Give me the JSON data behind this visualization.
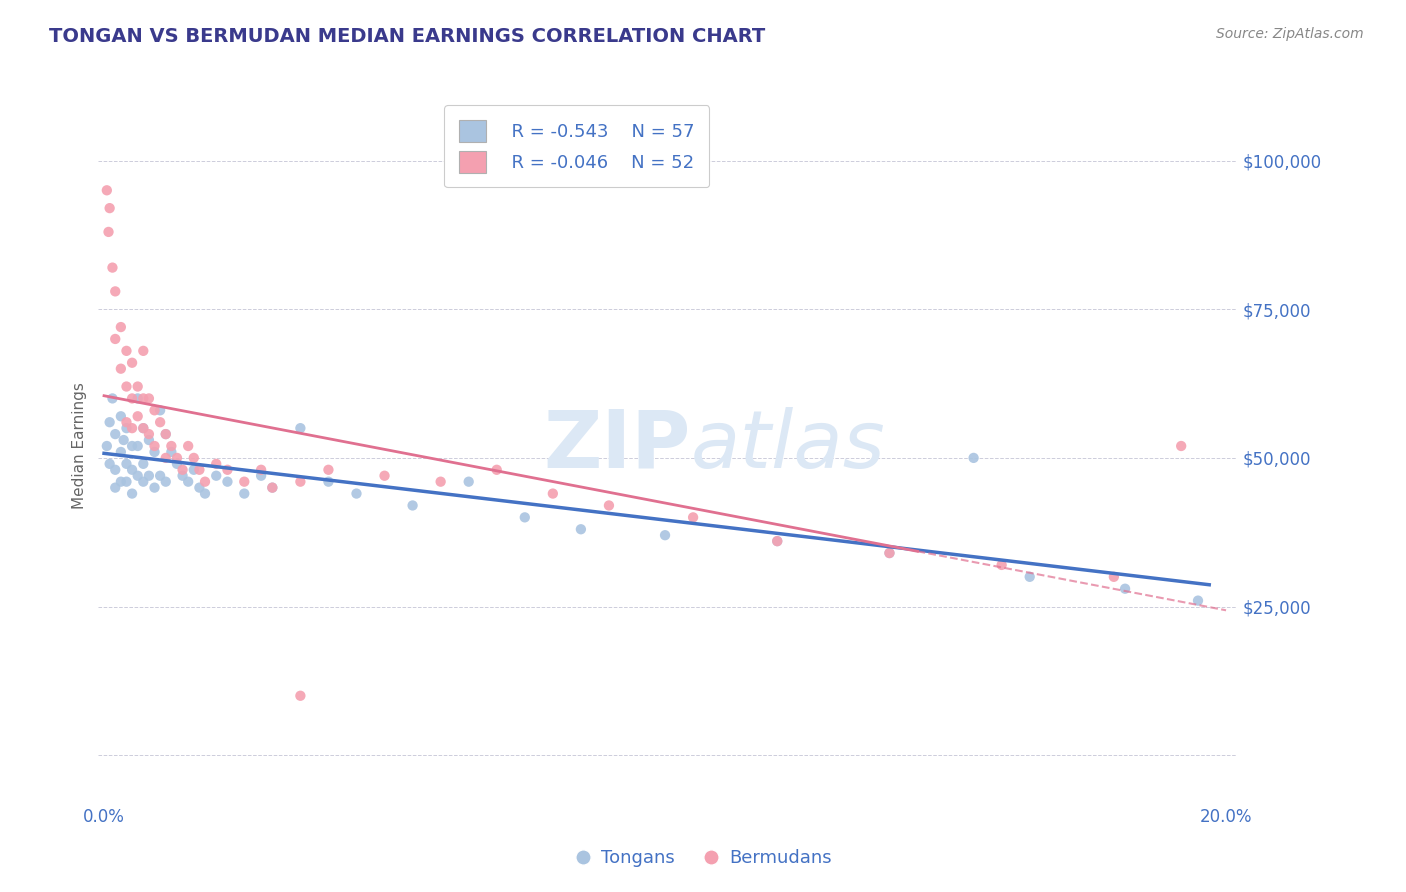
{
  "title": "TONGAN VS BERMUDAN MEDIAN EARNINGS CORRELATION CHART",
  "source": "Source: ZipAtlas.com",
  "ylabel_label": "Median Earnings",
  "y_ticks": [
    0,
    25000,
    50000,
    75000,
    100000
  ],
  "xlim": [
    -0.001,
    0.202
  ],
  "ylim": [
    -8000,
    112000
  ],
  "title_color": "#3a3a8c",
  "axis_color": "#4472c4",
  "legend_r1": "R = -0.543",
  "legend_n1": "N = 57",
  "legend_r2": "R = -0.046",
  "legend_n2": "N = 52",
  "tongans_color": "#aac4e0",
  "bermudans_color": "#f4a0b0",
  "line_tongans_color": "#4472c4",
  "line_bermudans_color": "#e07090",
  "tongans_scatter_x": [
    0.0005,
    0.001,
    0.001,
    0.0015,
    0.002,
    0.002,
    0.002,
    0.003,
    0.003,
    0.003,
    0.0035,
    0.004,
    0.004,
    0.004,
    0.005,
    0.005,
    0.005,
    0.006,
    0.006,
    0.006,
    0.007,
    0.007,
    0.007,
    0.008,
    0.008,
    0.009,
    0.009,
    0.01,
    0.01,
    0.011,
    0.011,
    0.012,
    0.013,
    0.014,
    0.015,
    0.016,
    0.017,
    0.018,
    0.02,
    0.022,
    0.025,
    0.028,
    0.03,
    0.035,
    0.04,
    0.045,
    0.055,
    0.065,
    0.075,
    0.085,
    0.1,
    0.12,
    0.14,
    0.155,
    0.165,
    0.182,
    0.195
  ],
  "tongans_scatter_y": [
    52000,
    56000,
    49000,
    60000,
    54000,
    48000,
    45000,
    57000,
    51000,
    46000,
    53000,
    55000,
    49000,
    46000,
    52000,
    48000,
    44000,
    60000,
    52000,
    47000,
    55000,
    49000,
    46000,
    53000,
    47000,
    51000,
    45000,
    58000,
    47000,
    54000,
    46000,
    51000,
    49000,
    47000,
    46000,
    48000,
    45000,
    44000,
    47000,
    46000,
    44000,
    47000,
    45000,
    55000,
    46000,
    44000,
    42000,
    46000,
    40000,
    38000,
    37000,
    36000,
    34000,
    50000,
    30000,
    28000,
    26000
  ],
  "bermudans_scatter_x": [
    0.0005,
    0.0008,
    0.001,
    0.0015,
    0.002,
    0.002,
    0.003,
    0.003,
    0.004,
    0.004,
    0.004,
    0.005,
    0.005,
    0.005,
    0.006,
    0.006,
    0.007,
    0.007,
    0.007,
    0.008,
    0.008,
    0.009,
    0.009,
    0.01,
    0.011,
    0.011,
    0.012,
    0.013,
    0.014,
    0.015,
    0.016,
    0.017,
    0.018,
    0.02,
    0.022,
    0.025,
    0.028,
    0.03,
    0.035,
    0.04,
    0.05,
    0.06,
    0.07,
    0.08,
    0.09,
    0.105,
    0.12,
    0.14,
    0.16,
    0.18,
    0.192,
    0.035
  ],
  "bermudans_scatter_y": [
    95000,
    88000,
    92000,
    82000,
    78000,
    70000,
    72000,
    65000,
    68000,
    62000,
    56000,
    66000,
    60000,
    55000,
    62000,
    57000,
    68000,
    60000,
    55000,
    60000,
    54000,
    58000,
    52000,
    56000,
    54000,
    50000,
    52000,
    50000,
    48000,
    52000,
    50000,
    48000,
    46000,
    49000,
    48000,
    46000,
    48000,
    45000,
    46000,
    48000,
    47000,
    46000,
    48000,
    44000,
    42000,
    40000,
    36000,
    34000,
    32000,
    30000,
    52000,
    10000
  ]
}
